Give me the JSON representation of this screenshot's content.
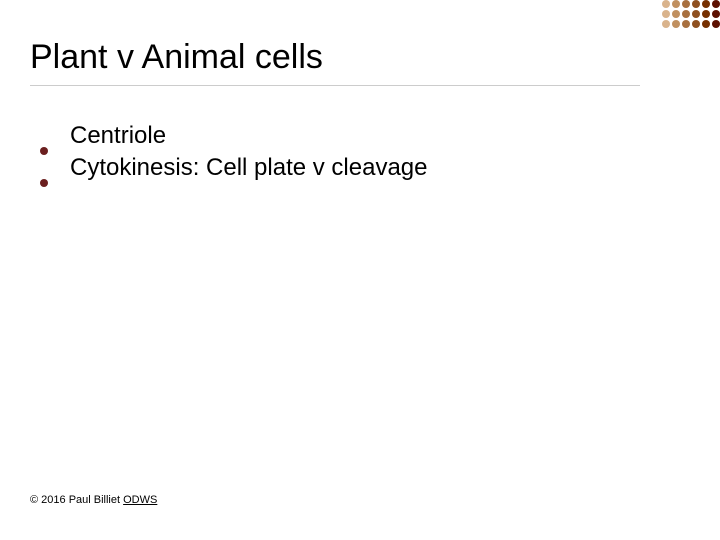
{
  "slide": {
    "background_color": "#ffffff",
    "title": {
      "text": "Plant v Animal cells",
      "fontsize": 34,
      "color": "#000000",
      "rule_color": "#cccccc",
      "rule_width": 1
    },
    "bullets": {
      "items": [
        {
          "text": "Centriole"
        },
        {
          "text": "Cytokinesis: Cell plate v cleavage"
        }
      ],
      "fontsize": 24,
      "text_color": "#000000",
      "marker_color": "#6b1f1f",
      "marker_size": 8
    },
    "footer": {
      "prefix": "© 2016 Paul Billiet ",
      "link_text": "ODWS",
      "fontsize": 11,
      "color": "#000000"
    },
    "corner_decoration": {
      "rows": 3,
      "cols": 6,
      "dot_size": 8,
      "gap": 2,
      "colors": [
        "#d9b38c",
        "#c09060",
        "#a87040",
        "#8f5020",
        "#763000",
        "#5c1000",
        "#d9b38c",
        "#c09060",
        "#a87040",
        "#8f5020",
        "#763000",
        "#5c1000",
        "#d9b38c",
        "#c09060",
        "#a87040",
        "#8f5020",
        "#763000",
        "#5c1000"
      ]
    }
  }
}
